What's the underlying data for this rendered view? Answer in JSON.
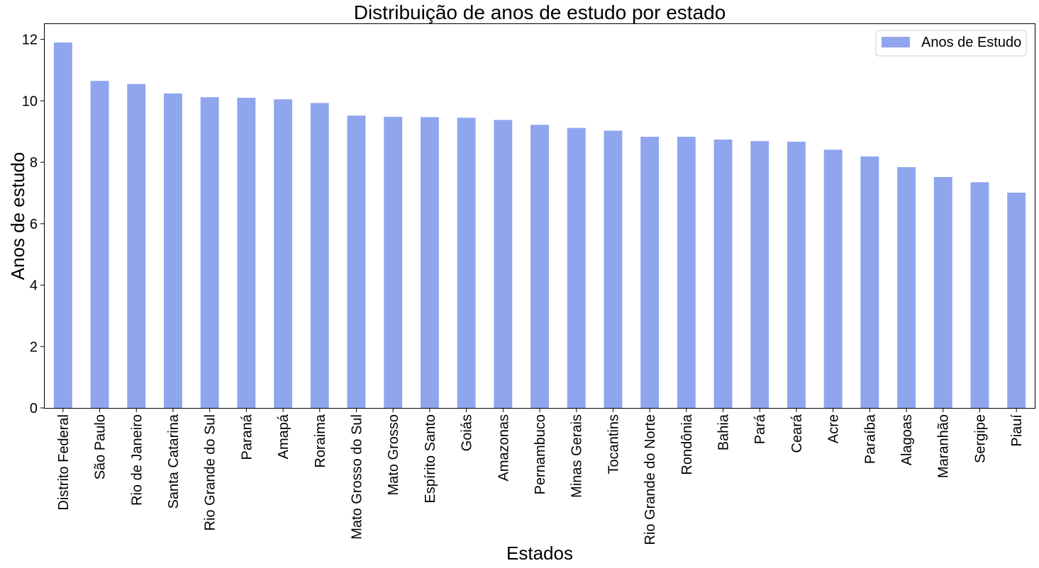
{
  "chart_data": {
    "type": "bar",
    "title": "Distribuição de anos de estudo por estado",
    "xlabel": "Estados",
    "ylabel": "Anos de estudo",
    "ylim": [
      0,
      12.5
    ],
    "yticks": [
      "0",
      "2",
      "4",
      "6",
      "8",
      "10",
      "12"
    ],
    "grid": false,
    "legend_position": "top-right",
    "bar_color": "#8fa5ee",
    "categories": [
      "Distrito Federal",
      "São Paulo",
      "Rio de Janeiro",
      "Santa Catarina",
      "Rio Grande do Sul",
      "Paraná",
      "Amapá",
      "Roraima",
      "Mato Grosso do Sul",
      "Mato Grosso",
      "Espírito Santo",
      "Goiás",
      "Amazonas",
      "Pernambuco",
      "Minas Gerais",
      "Tocantins",
      "Rio Grande do Norte",
      "Rondônia",
      "Bahia",
      "Pará",
      "Ceará",
      "Acre",
      "Paraíba",
      "Alagoas",
      "Maranhão",
      "Sergipe",
      "Piauí"
    ],
    "series": [
      {
        "name": "Anos de Estudo",
        "values": [
          11.9,
          10.65,
          10.55,
          10.24,
          10.12,
          10.1,
          10.05,
          9.93,
          9.52,
          9.48,
          9.47,
          9.45,
          9.38,
          9.22,
          9.12,
          9.03,
          8.83,
          8.83,
          8.74,
          8.69,
          8.67,
          8.41,
          8.19,
          7.84,
          7.52,
          7.35,
          7.01
        ]
      }
    ]
  }
}
